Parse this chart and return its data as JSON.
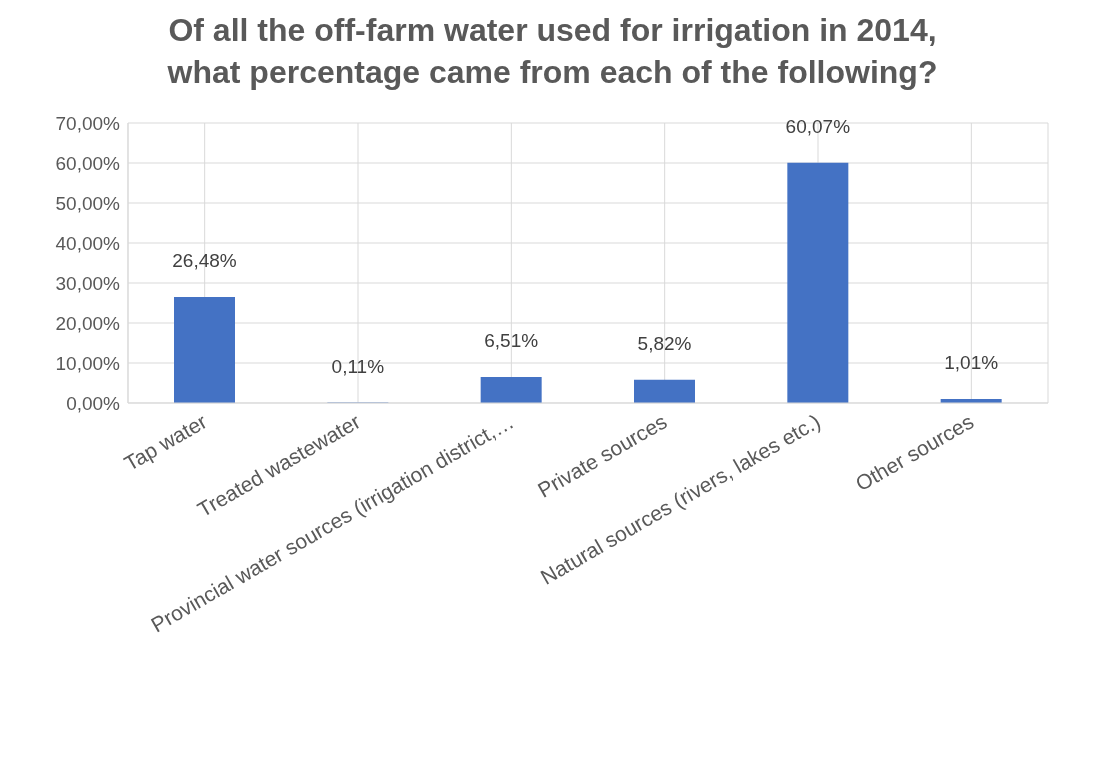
{
  "chart_data": {
    "type": "bar",
    "title": "Of all the off-farm water used for irrigation in 2014, what percentage came from each of the following?",
    "categories": [
      "Tap water",
      "Treated wastewater",
      "Provincial water sources (irrigation district,…",
      "Private sources",
      "Natural sources (rivers, lakes etc.)",
      "Other sources"
    ],
    "values": [
      26.48,
      0.11,
      6.51,
      5.82,
      60.07,
      1.01
    ],
    "value_labels": [
      "26,48%",
      "0,11%",
      "6,51%",
      "5,82%",
      "60,07%",
      "1,01%"
    ],
    "color": "#4472c4",
    "ylim": [
      0,
      70
    ],
    "yticks": [
      {
        "value": 0,
        "label": "0,00%"
      },
      {
        "value": 10,
        "label": "10,00%"
      },
      {
        "value": 20,
        "label": "20,00%"
      },
      {
        "value": 30,
        "label": "30,00%"
      },
      {
        "value": 40,
        "label": "40,00%"
      },
      {
        "value": 50,
        "label": "50,00%"
      },
      {
        "value": 60,
        "label": "60,00%"
      },
      {
        "value": 70,
        "label": "70,00%"
      }
    ],
    "grid": true
  }
}
